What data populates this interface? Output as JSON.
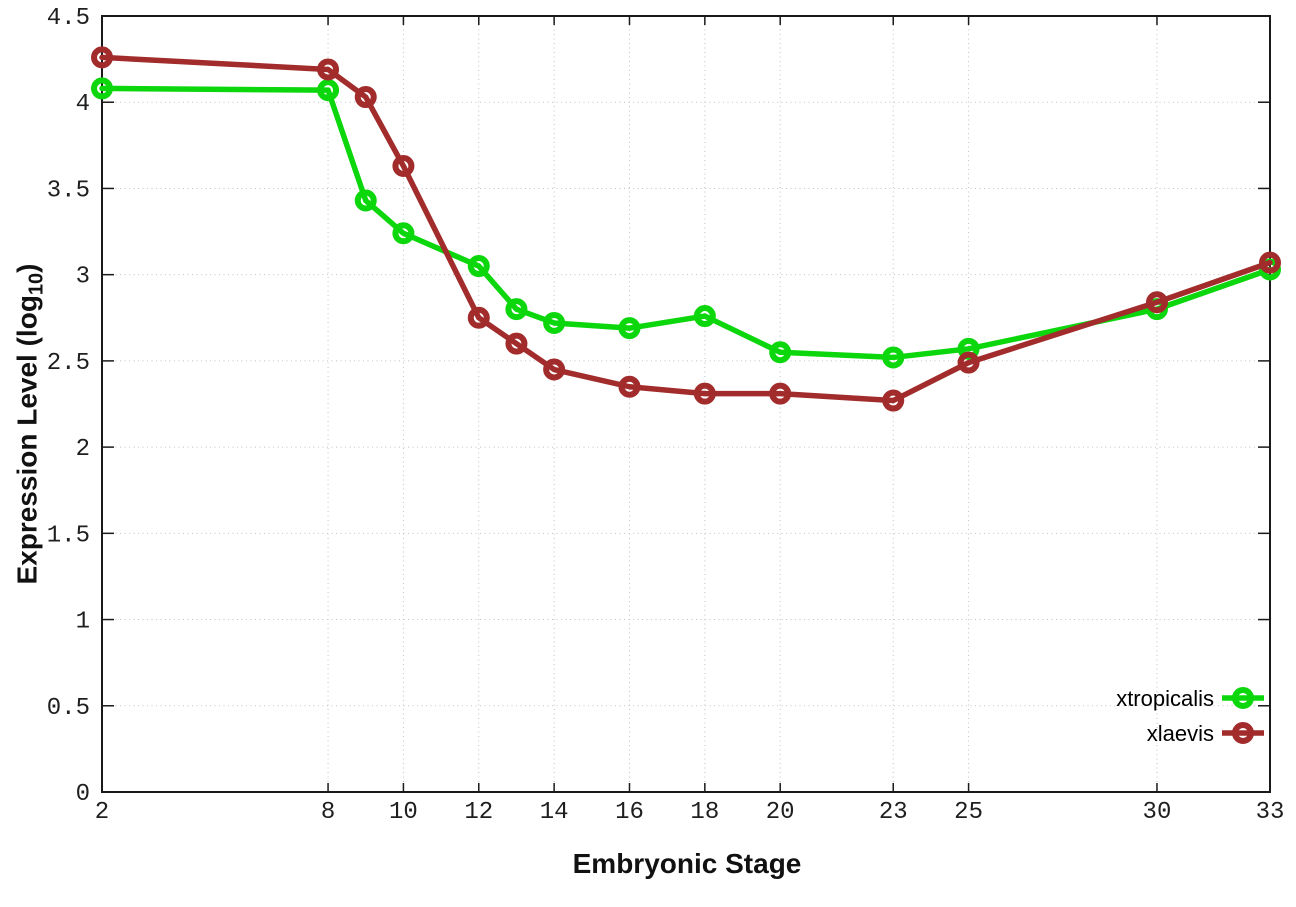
{
  "chart_data": {
    "type": "line",
    "title": "",
    "xlabel": "Embryonic Stage",
    "ylabel": {
      "pre": "Expression Level (log",
      "sub": "10",
      "post": ")"
    },
    "x": [
      2,
      8,
      9,
      10,
      12,
      13,
      14,
      16,
      18,
      20,
      23,
      25,
      30,
      33
    ],
    "series": [
      {
        "name": "xtropicalis",
        "color": "#0CD60C",
        "marker": "open-circle",
        "values": [
          4.08,
          4.07,
          3.43,
          3.24,
          3.05,
          2.8,
          2.72,
          2.69,
          2.76,
          2.55,
          2.52,
          2.57,
          2.8,
          3.03
        ]
      },
      {
        "name": "xlaevis",
        "color": "#A22C2C",
        "marker": "open-circle",
        "values": [
          4.26,
          4.19,
          4.03,
          3.63,
          2.75,
          2.6,
          2.45,
          2.35,
          2.31,
          2.31,
          2.27,
          2.49,
          2.84,
          3.07
        ]
      }
    ],
    "xlim": [
      2,
      33
    ],
    "ylim": [
      0,
      4.5
    ],
    "x_ticks": [
      2,
      8,
      10,
      12,
      14,
      16,
      18,
      20,
      23,
      25,
      30,
      33
    ],
    "y_ticks": [
      0,
      0.5,
      1,
      1.5,
      2,
      2.5,
      3,
      3.5,
      4,
      4.5
    ],
    "grid": true,
    "legend_position": "inside-bottom-right",
    "legend_entries": [
      "xtropicalis",
      "xlaevis"
    ]
  },
  "colors": {
    "background": "#FFFFFF",
    "axis": "#1A1A1A",
    "grid": "#C2C2C2",
    "tick_label": "#1F1F1F",
    "series_xtropicalis": "#0CD60C",
    "series_xlaevis": "#A22C2C"
  }
}
